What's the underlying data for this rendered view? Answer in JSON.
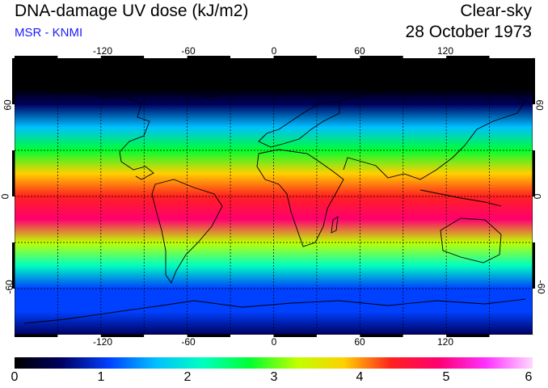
{
  "header": {
    "title": "DNA-damage UV dose (kJ/m2)",
    "subtitle": "MSR - KNMI",
    "sky_condition": "Clear-sky",
    "date": "28 October 1973"
  },
  "map": {
    "projection": "equirectangular",
    "lon_ticks": [
      "-120",
      "-60",
      "0",
      "60",
      "120"
    ],
    "lat_ticks": [
      "60",
      "0",
      "-60"
    ],
    "gridlines": true,
    "coastlines": true
  },
  "colorbar": {
    "min": 0,
    "max": 6,
    "tick_labels": [
      "0",
      "1",
      "2",
      "3",
      "4",
      "5",
      "6"
    ],
    "colors": [
      "#000000",
      "#000060",
      "#0040ff",
      "#00c0ff",
      "#00ffc0",
      "#00ff30",
      "#c0ff00",
      "#ffd000",
      "#ff2020",
      "#ff0070",
      "#ff30ff",
      "#ffd8ff"
    ]
  },
  "field": {
    "description_values": [
      {
        "lat": 90,
        "value": 0.0
      },
      {
        "lat": 70,
        "value": 0.2
      },
      {
        "lat": 60,
        "value": 0.7
      },
      {
        "lat": 45,
        "value": 1.6
      },
      {
        "lat": 30,
        "value": 2.8
      },
      {
        "lat": 15,
        "value": 3.7
      },
      {
        "lat": 0,
        "value": 4.5
      },
      {
        "lat": -15,
        "value": 4.8
      },
      {
        "lat": -30,
        "value": 3.5
      },
      {
        "lat": -45,
        "value": 2.0
      },
      {
        "lat": -60,
        "value": 1.1
      },
      {
        "lat": -75,
        "value": 0.9
      },
      {
        "lat": -90,
        "value": 0.8
      }
    ]
  }
}
